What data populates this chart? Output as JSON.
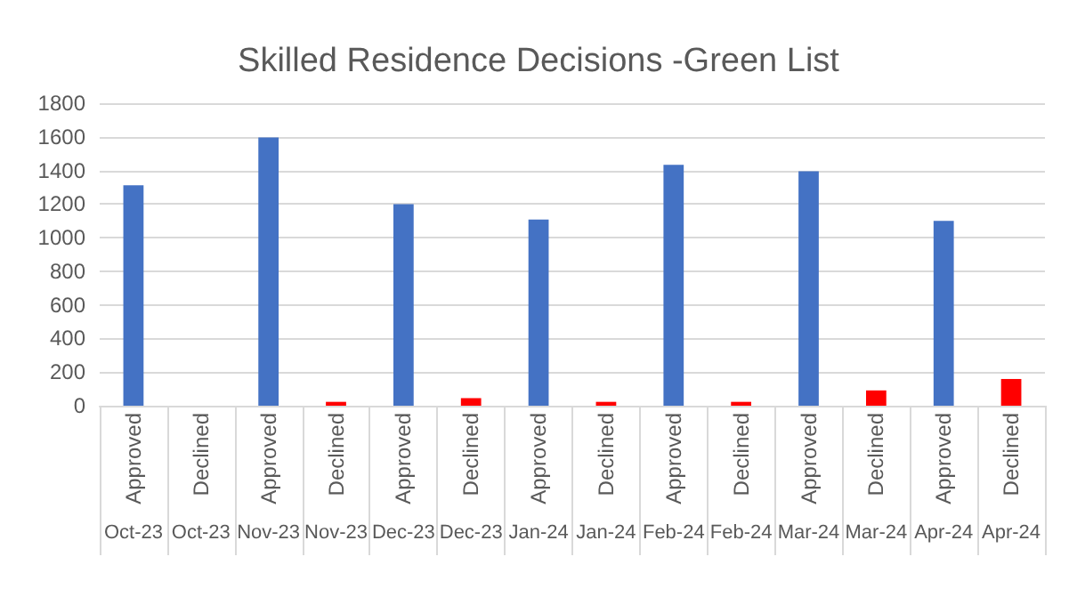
{
  "chart_data": {
    "type": "bar",
    "title": "Skilled Residence Decisions -Green List",
    "categories": [
      "Approved\nOct-23",
      "Declined\nOct-23",
      "Approved\nNov-23",
      "Declined\nNov-23",
      "Approved\nDec-23",
      "Declined\nDec-23",
      "Approved\nJan-24",
      "Declined\nJan-24",
      "Approved\nFeb-24",
      "Declined\nFeb-24",
      "Approved\nMar-24",
      "Declined\nMar-24",
      "Approved\nApr-24",
      "Declined\nApr-24"
    ],
    "values": [
      1312,
      0,
      1596,
      23,
      1199,
      45,
      1108,
      23,
      1433,
      23,
      1395,
      91,
      1100,
      159
    ],
    "colors": [
      "#4472c4",
      "#ff0000",
      "#4472c4",
      "#ff0000",
      "#4472c4",
      "#ff0000",
      "#4472c4",
      "#ff0000",
      "#4472c4",
      "#ff0000",
      "#4472c4",
      "#ff0000",
      "#4472c4",
      "#ff0000"
    ],
    "ylim": [
      0,
      1800
    ],
    "yticks": [
      0,
      200,
      400,
      600,
      800,
      1000,
      1200,
      1400,
      1600,
      1800
    ],
    "grid": "y"
  }
}
